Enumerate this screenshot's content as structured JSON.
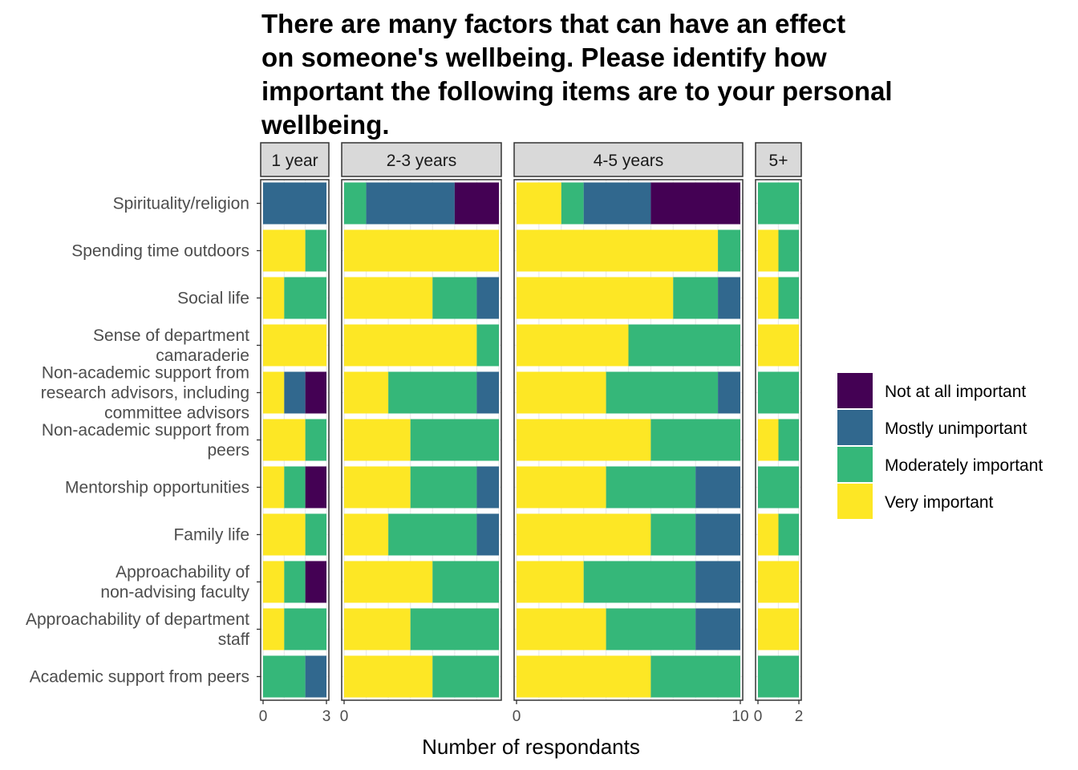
{
  "chart_data": {
    "type": "bar",
    "orientation": "horizontal",
    "stacked": true,
    "title_lines": [
      "There are many factors that can have an effect",
      "on someone's wellbeing. Please identify how",
      "important the following items are to your personal",
      "wellbeing."
    ],
    "xlabel": "Number of respondants",
    "categories": [
      "Spirituality/religion",
      "Spending time outdoors",
      "Social life",
      "Sense of department camaraderie",
      "Non-academic support from research advisors, including committee advisors",
      "Non-academic support from peers",
      "Mentorship opportunities",
      "Family life",
      "Approachability of non-advising faculty",
      "Approachability of department staff",
      "Academic support from peers"
    ],
    "category_label_lines": [
      [
        "Spirituality/religion"
      ],
      [
        "Spending time outdoors"
      ],
      [
        "Social life"
      ],
      [
        "Sense of department",
        "camaraderie"
      ],
      [
        "Non-academic support from",
        "research advisors, including",
        "committee advisors"
      ],
      [
        "Non-academic support from",
        "peers"
      ],
      [
        "Mentorship opportunities"
      ],
      [
        "Family life"
      ],
      [
        "Approachability of",
        "non-advising faculty"
      ],
      [
        "Approachability of department",
        "staff"
      ],
      [
        "Academic support from peers"
      ]
    ],
    "legend": {
      "position": "right",
      "entries": [
        {
          "label": "Not at all important",
          "color": "#440154"
        },
        {
          "label": "Mostly unimportant",
          "color": "#31688E"
        },
        {
          "label": "Moderately important",
          "color": "#35B779"
        },
        {
          "label": "Very important",
          "color": "#FDE725"
        }
      ]
    },
    "stack_order": [
      "Very important",
      "Moderately important",
      "Mostly unimportant",
      "Not at all important"
    ],
    "panels": [
      {
        "name": "1 year",
        "xlim": [
          0,
          3
        ],
        "ticks": [
          0,
          3
        ],
        "series": [
          {
            "name": "Very important",
            "values": [
              0,
              2,
              1,
              3,
              1,
              2,
              1,
              2,
              1,
              1,
              0
            ]
          },
          {
            "name": "Moderately important",
            "values": [
              0,
              1,
              2,
              0,
              0,
              1,
              1,
              1,
              1,
              2,
              2
            ]
          },
          {
            "name": "Mostly unimportant",
            "values": [
              3,
              0,
              0,
              0,
              1,
              0,
              0,
              0,
              0,
              0,
              1
            ]
          },
          {
            "name": "Not at all important",
            "values": [
              0,
              0,
              0,
              0,
              1,
              0,
              1,
              0,
              1,
              0,
              0
            ]
          }
        ]
      },
      {
        "name": "2-3 years",
        "xlim": [
          0,
          7
        ],
        "ticks": [
          0
        ],
        "series": [
          {
            "name": "Very important",
            "values": [
              0,
              7,
              4,
              6,
              2,
              3,
              3,
              2,
              4,
              3,
              4
            ]
          },
          {
            "name": "Moderately important",
            "values": [
              1,
              0,
              2,
              1,
              4,
              4,
              3,
              4,
              3,
              4,
              3
            ]
          },
          {
            "name": "Mostly unimportant",
            "values": [
              4,
              0,
              1,
              0,
              1,
              0,
              1,
              1,
              0,
              0,
              0
            ]
          },
          {
            "name": "Not at all important",
            "values": [
              2,
              0,
              0,
              0,
              0,
              0,
              0,
              0,
              0,
              0,
              0
            ]
          }
        ]
      },
      {
        "name": "4-5 years",
        "xlim": [
          0,
          10
        ],
        "ticks": [
          0,
          10
        ],
        "series": [
          {
            "name": "Very important",
            "values": [
              2,
              9,
              7,
              5,
              4,
              6,
              4,
              6,
              3,
              4,
              6
            ]
          },
          {
            "name": "Moderately important",
            "values": [
              1,
              1,
              2,
              5,
              5,
              4,
              4,
              2,
              5,
              4,
              4
            ]
          },
          {
            "name": "Mostly unimportant",
            "values": [
              3,
              0,
              1,
              0,
              1,
              0,
              2,
              2,
              2,
              2,
              0
            ]
          },
          {
            "name": "Not at all important",
            "values": [
              4,
              0,
              0,
              0,
              0,
              0,
              0,
              0,
              0,
              0,
              0
            ]
          }
        ]
      },
      {
        "name": "5+",
        "xlim": [
          0,
          2
        ],
        "ticks": [
          0,
          2
        ],
        "series": [
          {
            "name": "Very important",
            "values": [
              0,
              1,
              1,
              2,
              0,
              1,
              0,
              1,
              2,
              2,
              0
            ]
          },
          {
            "name": "Moderately important",
            "values": [
              2,
              1,
              1,
              0,
              2,
              1,
              2,
              1,
              0,
              0,
              2
            ]
          },
          {
            "name": "Mostly unimportant",
            "values": [
              0,
              0,
              0,
              0,
              0,
              0,
              0,
              0,
              0,
              0,
              0
            ]
          },
          {
            "name": "Not at all important",
            "values": [
              0,
              0,
              0,
              0,
              0,
              0,
              0,
              0,
              0,
              0,
              0
            ]
          }
        ]
      }
    ],
    "grid": true,
    "panel_border_color": "#333333",
    "strip_fill": "#D9D9D9"
  }
}
